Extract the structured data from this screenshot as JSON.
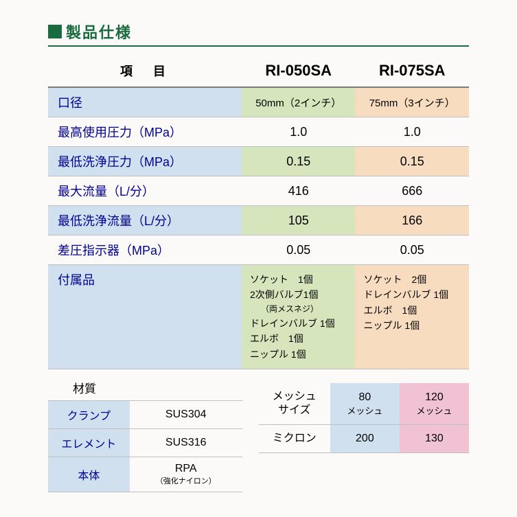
{
  "heading": "製品仕様",
  "colors": {
    "primary": "#1a6b3e",
    "altLabel": "#d1e0ee",
    "colA": "#d6e5bb",
    "colB": "#f8dcc0",
    "mesh80": "#d1e0ee",
    "mesh120": "#f0c2d4",
    "blueText": "#000094"
  },
  "mainTable": {
    "headerItem": "項　目",
    "modelA": "RI-050SA",
    "modelB": "RI-075SA",
    "rows": [
      {
        "label": "口径",
        "a": "50mm（2インチ）",
        "b": "75mm（3インチ）",
        "alt": true,
        "smallText": true
      },
      {
        "label": "最高使用圧力（MPa）",
        "a": "1.0",
        "b": "1.0",
        "alt": false
      },
      {
        "label": "最低洗浄圧力（MPa）",
        "a": "0.15",
        "b": "0.15",
        "alt": true
      },
      {
        "label": "最大流量（L/分）",
        "a": "416",
        "b": "666",
        "alt": false
      },
      {
        "label": "最低洗浄流量（L/分）",
        "a": "105",
        "b": "166",
        "alt": true
      },
      {
        "label": "差圧指示器（MPa）",
        "a": "0.05",
        "b": "0.05",
        "alt": false
      }
    ],
    "accessories": {
      "label": "付属品",
      "colA": {
        "line1": "ソケット　1個",
        "line2": "2次側バルブ1個",
        "line2sub": "（両メスネジ）",
        "line3": "ドレインバルブ 1個",
        "line4": "エルボ　1個",
        "line5": "ニップル 1個"
      },
      "colB": {
        "line1": "ソケット　2個",
        "line2": "ドレインバルブ 1個",
        "line3": "エルボ　1個",
        "line4": "ニップル 1個"
      }
    }
  },
  "material": {
    "title": "材質",
    "rows": [
      {
        "label": "クランプ",
        "value": "SUS304"
      },
      {
        "label": "エレメント",
        "value": "SUS316"
      },
      {
        "label": "本体",
        "value": "RPA",
        "sub": "（強化ナイロン）"
      }
    ]
  },
  "mesh": {
    "row1": {
      "labelL1": "メッシュ",
      "labelL2": "サイズ",
      "a": "80",
      "aSub": "メッシュ",
      "b": "120",
      "bSub": "メッシュ"
    },
    "row2": {
      "label": "ミクロン",
      "a": "200",
      "b": "130"
    }
  }
}
